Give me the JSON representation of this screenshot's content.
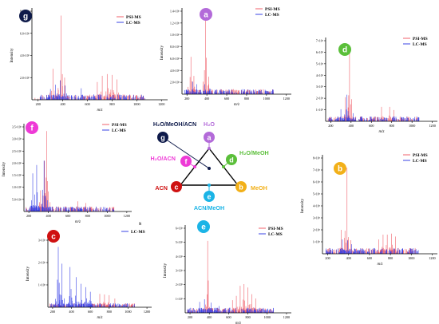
{
  "colors": {
    "psi": "#f0616b",
    "lc": "#3a43e6",
    "axis": "#000000"
  },
  "legend_labels": {
    "psi": "PSI-MS",
    "lc": "LC-MS"
  },
  "axis_labels": {
    "x": "m/z",
    "y": "Intensity"
  },
  "stray_legend_text": "S",
  "panels": [
    {
      "id": "g",
      "badge": "g",
      "badge_color": "#0e1a4a",
      "ylabel": "Intensity",
      "y_ticks": [
        "2.0×10⁵",
        "4.0×10⁵",
        "6.0×10⁵",
        "8.0×10⁵"
      ],
      "x_ticks": [
        "200",
        "400",
        "600",
        "800",
        "1000",
        "1200"
      ]
    },
    {
      "id": "a",
      "badge": "a",
      "badge_color": "#b36ad9",
      "ylabel": "Intensity",
      "y_ticks": [
        "2.0×10⁵",
        "4.0×10⁵",
        "6.0×10⁵",
        "8.0×10⁵",
        "1.0×10⁶",
        "1.2×10⁶",
        "1.4×10⁶"
      ],
      "x_ticks": [
        "200",
        "400",
        "600",
        "800",
        "1000",
        "1200"
      ]
    },
    {
      "id": "d",
      "badge": "d",
      "badge_color": "#5bbf3a",
      "ylabel": "",
      "y_ticks": [
        "1×10⁵",
        "2×10⁵",
        "3×10⁵",
        "4×10⁵",
        "5×10⁵",
        "6×10⁵",
        "7×10⁵"
      ],
      "x_ticks": [
        "200",
        "400",
        "600",
        "800",
        "1000",
        "1200"
      ]
    },
    {
      "id": "f",
      "badge": "f",
      "badge_color": "#ee3ad6",
      "ylabel": "Intensity",
      "y_ticks": [
        "5.0×10⁴",
        "1.0×10⁵",
        "1.5×10⁵",
        "2.0×10⁵",
        "2.5×10⁵",
        "3.0×10⁵",
        "3.5×10⁵"
      ],
      "x_ticks": [
        "200",
        "400",
        "600",
        "800",
        "1000",
        "1200"
      ]
    },
    {
      "id": "b",
      "badge": "b",
      "badge_color": "#f2b019",
      "ylabel": "Intensity",
      "y_ticks": [
        "1×10⁵",
        "2×10⁵",
        "3×10⁵",
        "4×10⁵",
        "5×10⁵",
        "6×10⁵",
        "7×10⁵",
        "8×10⁵"
      ],
      "x_ticks": [
        "200",
        "400",
        "600",
        "800",
        "1000",
        "1200"
      ]
    },
    {
      "id": "c",
      "badge": "c",
      "badge_color": "#cf1111",
      "ylabel": "Intensity",
      "y_ticks": [
        "1×10⁵",
        "2×10⁵",
        "3×10⁵"
      ],
      "x_ticks": [
        "200",
        "400",
        "600",
        "800",
        "1000",
        "1200"
      ]
    },
    {
      "id": "e",
      "badge": "e",
      "badge_color": "#1bb4e6",
      "ylabel": "Intensity",
      "y_ticks": [
        "1×10⁵",
        "2×10⁵",
        "3×10⁵",
        "4×10⁵",
        "5×10⁵",
        "6×10⁵"
      ],
      "x_ticks": [
        "200",
        "400",
        "600",
        "800",
        "1000",
        "1200"
      ]
    }
  ],
  "triangle": {
    "nodes": [
      {
        "id": "g",
        "label": "H₂O/MeOH/ACN",
        "label_color": "#0e1a4a",
        "node_color": "#0e1a4a"
      },
      {
        "id": "a",
        "label": "H₂O",
        "label_color": "#b36ad9",
        "node_color": "#b36ad9"
      },
      {
        "id": "d",
        "label": "H₂O/MeOH",
        "label_color": "#5bbf3a",
        "node_color": "#5bbf3a"
      },
      {
        "id": "b",
        "label": "MeOH",
        "label_color": "#f2b019",
        "node_color": "#f2b019"
      },
      {
        "id": "e",
        "label": "ACN/MeOH",
        "label_color": "#1bb4e6",
        "node_color": "#1bb4e6"
      },
      {
        "id": "c",
        "label": "ACN",
        "label_color": "#cf1111",
        "node_color": "#cf1111"
      },
      {
        "id": "f",
        "label": "H₂O/ACN",
        "label_color": "#ee3ad6",
        "node_color": "#ee3ad6"
      }
    ]
  },
  "chart_data": [
    {
      "panel": "g",
      "type": "line",
      "xlim": [
        150,
        1250
      ],
      "series": [
        {
          "name": "PSI-MS",
          "peaks": [
            [
              385,
              0.95
            ],
            [
              320,
              0.35
            ],
            [
              415,
              0.25
            ],
            [
              720,
              0.27
            ],
            [
              760,
              0.29
            ],
            [
              800,
              0.28
            ],
            [
              840,
              0.23
            ],
            [
              680,
              0.2
            ]
          ]
        },
        {
          "name": "LC-MS",
          "peaks": [
            [
              300,
              0.12
            ],
            [
              340,
              0.17
            ],
            [
              380,
              0.22
            ],
            [
              420,
              0.16
            ],
            [
              550,
              0.13
            ]
          ]
        }
      ]
    },
    {
      "panel": "a",
      "type": "line",
      "xlim": [
        150,
        1250
      ],
      "series": [
        {
          "name": "PSI-MS",
          "peaks": [
            [
              386,
              0.98
            ],
            [
              240,
              0.45
            ],
            [
              270,
              0.22
            ],
            [
              420,
              0.12
            ],
            [
              650,
              0.06
            ],
            [
              700,
              0.05
            ]
          ]
        },
        {
          "name": "LC-MS",
          "peaks": [
            [
              260,
              0.15
            ],
            [
              300,
              0.12
            ],
            [
              380,
              0.12
            ],
            [
              430,
              0.07
            ]
          ]
        }
      ]
    },
    {
      "panel": "d",
      "type": "line",
      "xlim": [
        150,
        1250
      ],
      "series": [
        {
          "name": "PSI-MS",
          "peaks": [
            [
              385,
              0.9
            ],
            [
              345,
              0.3
            ],
            [
              700,
              0.18
            ],
            [
              780,
              0.18
            ],
            [
              820,
              0.14
            ]
          ]
        },
        {
          "name": "LC-MS",
          "peaks": [
            [
              360,
              0.33
            ],
            [
              300,
              0.15
            ],
            [
              420,
              0.1
            ]
          ]
        }
      ]
    },
    {
      "panel": "f",
      "type": "line",
      "xlim": [
        150,
        1250
      ],
      "series": [
        {
          "name": "PSI-MS",
          "peaks": [
            [
              383,
              0.95
            ],
            [
              320,
              0.25
            ],
            [
              360,
              0.6
            ],
            [
              700,
              0.12
            ],
            [
              780,
              0.1
            ]
          ]
        },
        {
          "name": "LC-MS",
          "peaks": [
            [
              240,
              0.45
            ],
            [
              280,
              0.55
            ],
            [
              355,
              0.6
            ],
            [
              260,
              0.2
            ]
          ]
        }
      ]
    },
    {
      "panel": "b",
      "type": "line",
      "xlim": [
        150,
        1250
      ],
      "series": [
        {
          "name": "PSI-MS",
          "peaks": [
            [
              385,
              0.9
            ],
            [
              330,
              0.25
            ],
            [
              730,
              0.2
            ],
            [
              770,
              0.2
            ],
            [
              810,
              0.21
            ],
            [
              850,
              0.18
            ],
            [
              690,
              0.15
            ]
          ]
        },
        {
          "name": "LC-MS",
          "peaks": [
            [
              340,
              0.15
            ],
            [
              390,
              0.14
            ],
            [
              430,
              0.1
            ]
          ]
        }
      ]
    },
    {
      "panel": "c",
      "type": "line",
      "xlim": [
        150,
        1250
      ],
      "series": [
        {
          "name": "PSI-MS",
          "peaks": [
            [
              700,
              0.2
            ],
            [
              750,
              0.19
            ],
            [
              800,
              0.18
            ],
            [
              860,
              0.13
            ]
          ]
        },
        {
          "name": "LC-MS",
          "peaks": [
            [
              385,
              0.6
            ],
            [
              260,
              0.9
            ],
            [
              300,
              0.65
            ],
            [
              450,
              0.45
            ],
            [
              500,
              0.35
            ],
            [
              550,
              0.3
            ],
            [
              600,
              0.23
            ]
          ]
        }
      ]
    },
    {
      "panel": "e",
      "type": "line",
      "xlim": [
        150,
        1250
      ],
      "series": [
        {
          "name": "PSI-MS",
          "peaks": [
            [
              383,
              0.85
            ],
            [
              720,
              0.32
            ],
            [
              760,
              0.34
            ],
            [
              800,
              0.3
            ],
            [
              840,
              0.22
            ],
            [
              880,
              0.17
            ],
            [
              680,
              0.2
            ],
            [
              640,
              0.15
            ]
          ]
        },
        {
          "name": "LC-MS",
          "peaks": [
            [
              300,
              0.13
            ],
            [
              350,
              0.16
            ],
            [
              420,
              0.12
            ],
            [
              500,
              0.08
            ]
          ]
        }
      ]
    }
  ]
}
